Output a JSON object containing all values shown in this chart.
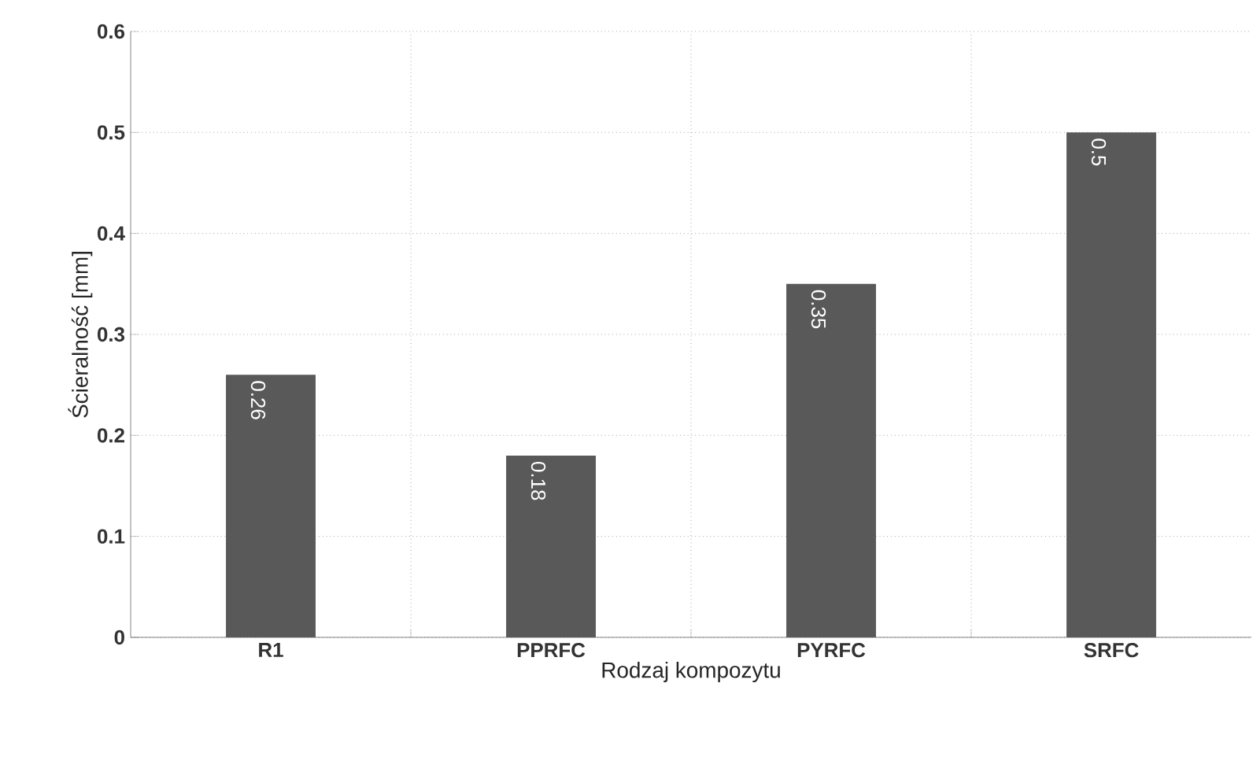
{
  "chart_data": {
    "type": "bar",
    "xlabel": "Rodzaj kompozytu",
    "ylabel": "Ścieralność [mm]",
    "categories": [
      "R1",
      "PPRFC",
      "PYRFC",
      "SRFC"
    ],
    "values": [
      0.26,
      0.18,
      0.35,
      0.5
    ],
    "color": "#595959",
    "ylim": [
      0,
      0.6
    ],
    "yticks": [
      0,
      0.1,
      0.2,
      0.3,
      0.4,
      0.5,
      0.6
    ],
    "grid": true,
    "data_labels": true
  }
}
